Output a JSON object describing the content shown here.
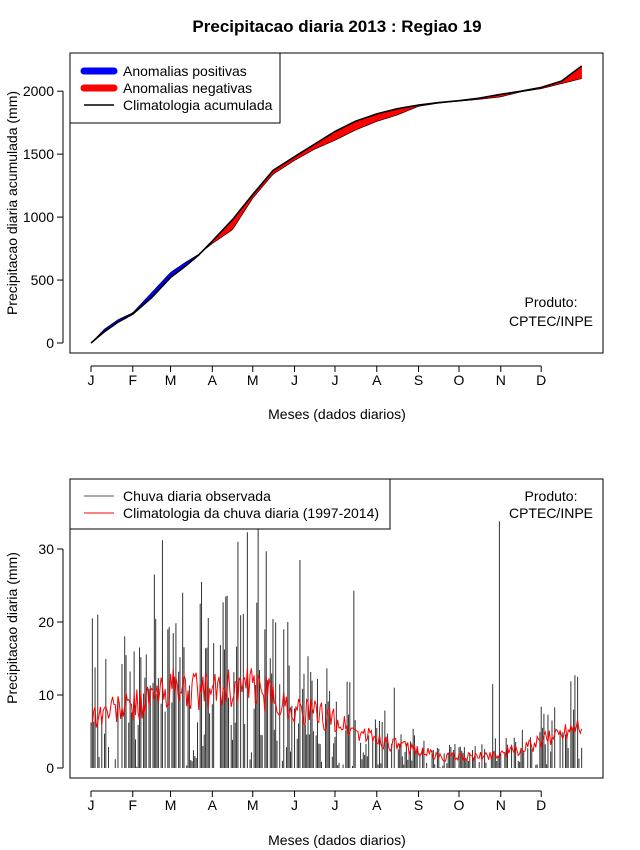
{
  "chart_data": [
    {
      "type": "line",
      "title": "Precipitacao diaria 2013 : Regiao 19",
      "xlabel": "Meses (dados diarios)",
      "ylabel": "Precipitacao diaria acumulada (mm)",
      "xlim": [
        0,
        365
      ],
      "ylim": [
        0,
        2200
      ],
      "yticks": [
        0,
        500,
        1000,
        1500,
        2000
      ],
      "month_labels": [
        "J",
        "F",
        "M",
        "A",
        "M",
        "J",
        "J",
        "A",
        "S",
        "O",
        "N",
        "D"
      ],
      "month_start_day": [
        0,
        31,
        59,
        90,
        120,
        151,
        181,
        212,
        243,
        273,
        304,
        334
      ],
      "legend": {
        "position": "top-left",
        "entries": [
          {
            "label": "Anomalias positivas",
            "color": "#0000ff"
          },
          {
            "label": "Anomalias negativas",
            "color": "#ff0000"
          },
          {
            "label": "Climatologia acumulada",
            "color": "#000000"
          }
        ]
      },
      "annotation": [
        "Produto:",
        "CPTEC/INPE"
      ],
      "days": [
        0,
        10,
        20,
        31,
        45,
        59,
        70,
        80,
        90,
        105,
        120,
        135,
        151,
        166,
        181,
        196,
        212,
        227,
        243,
        258,
        273,
        288,
        304,
        319,
        334,
        349,
        364
      ],
      "climatology_cumulative": [
        0,
        90,
        165,
        230,
        360,
        520,
        610,
        700,
        810,
        980,
        1180,
        1370,
        1480,
        1580,
        1680,
        1760,
        1820,
        1860,
        1890,
        1910,
        1925,
        1945,
        1975,
        2000,
        2030,
        2080,
        2200
      ],
      "observed_cumulative": [
        0,
        110,
        185,
        240,
        400,
        560,
        640,
        705,
        790,
        900,
        1150,
        1340,
        1450,
        1540,
        1610,
        1690,
        1760,
        1810,
        1880,
        1905,
        1920,
        1935,
        1955,
        1995,
        2020,
        2060,
        2100
      ]
    },
    {
      "type": "bar",
      "xlabel": "Meses (dados diarios)",
      "ylabel": "Precipitacao diaria (mm)",
      "xlim": [
        0,
        365
      ],
      "ylim": [
        0,
        38
      ],
      "yticks": [
        0,
        10,
        20,
        30
      ],
      "month_labels": [
        "J",
        "F",
        "M",
        "A",
        "M",
        "J",
        "J",
        "A",
        "S",
        "O",
        "N",
        "D"
      ],
      "month_start_day": [
        0,
        31,
        59,
        90,
        120,
        151,
        181,
        212,
        243,
        273,
        304,
        334
      ],
      "legend": {
        "position": "top-left",
        "entries": [
          {
            "label": "Chuva diaria observada",
            "color": "#555555"
          },
          {
            "label": "Climatologia da chuva diaria (1997-2014)",
            "color": "#ff0000"
          }
        ]
      },
      "annotation": [
        "Produto:",
        "CPTEC/INPE"
      ],
      "climatology_daily": {
        "days": [
          0,
          15,
          31,
          45,
          59,
          75,
          90,
          105,
          120,
          135,
          151,
          166,
          181,
          196,
          212,
          227,
          243,
          258,
          273,
          288,
          304,
          319,
          334,
          349,
          364
        ],
        "values": [
          7,
          8,
          8.5,
          9.5,
          11,
          10.5,
          10.5,
          11,
          11,
          9.5,
          8,
          7.5,
          6.5,
          5,
          4,
          3,
          2.5,
          1.5,
          1.5,
          1.5,
          2,
          2.5,
          3.5,
          5,
          6.5
        ]
      },
      "observed_daily_peaks": [
        {
          "day": 1,
          "value": 20.5
        },
        {
          "day": 5,
          "value": 21
        },
        {
          "day": 36,
          "value": 16.5
        },
        {
          "day": 47,
          "value": 26.5
        },
        {
          "day": 53,
          "value": 31.2
        },
        {
          "day": 68,
          "value": 24
        },
        {
          "day": 82,
          "value": 25.5
        },
        {
          "day": 100,
          "value": 23.5
        },
        {
          "day": 109,
          "value": 31
        },
        {
          "day": 116,
          "value": 32.3
        },
        {
          "day": 124,
          "value": 33.2
        },
        {
          "day": 130,
          "value": 29.7
        },
        {
          "day": 146,
          "value": 20
        },
        {
          "day": 155,
          "value": 28.5
        },
        {
          "day": 195,
          "value": 24.3
        },
        {
          "day": 225,
          "value": 11
        },
        {
          "day": 298,
          "value": 11.5
        },
        {
          "day": 303,
          "value": 33.8
        },
        {
          "day": 334,
          "value": 8.4
        },
        {
          "day": 361,
          "value": 12.5
        }
      ]
    }
  ]
}
